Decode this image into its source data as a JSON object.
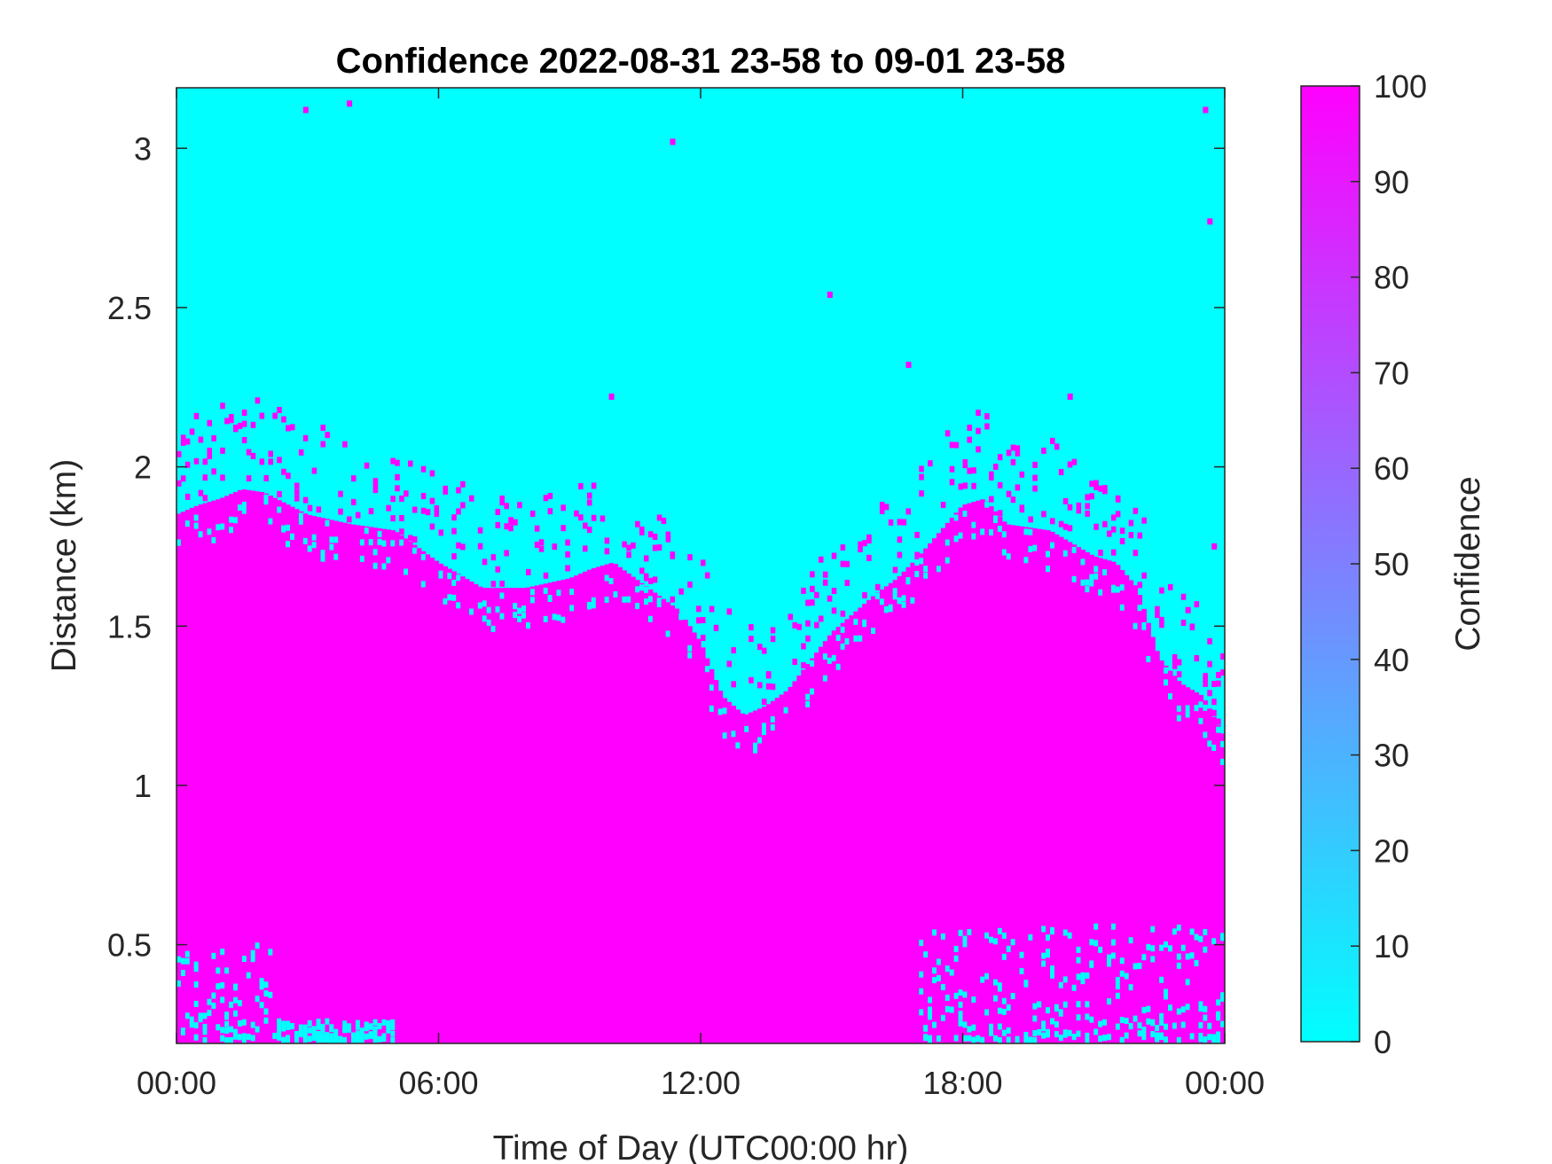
{
  "chart_data": {
    "type": "heatmap",
    "title": "Confidence 2022-08-31 23-58 to 09-01 23-58",
    "xlabel": "Time of Day (UTC00:00 hr)",
    "ylabel": "Distance (km)",
    "x_tick_labels": [
      "00:00",
      "06:00",
      "12:00",
      "18:00",
      "00:00"
    ],
    "x_ticks_hours": [
      0,
      6,
      12,
      18,
      24
    ],
    "xlim_hours": [
      0,
      24
    ],
    "y_ticks": [
      0.5,
      1,
      1.5,
      2,
      2.5,
      3
    ],
    "y_tick_labels": [
      "0.5",
      "1",
      "1.5",
      "2",
      "2.5",
      "3"
    ],
    "ylim": [
      0.19,
      3.19
    ],
    "colorbar": {
      "label": "Confidence",
      "ticks": [
        0,
        10,
        20,
        30,
        40,
        50,
        60,
        70,
        80,
        90,
        100
      ],
      "tick_labels": [
        "0",
        "10",
        "20",
        "30",
        "40",
        "50",
        "60",
        "70",
        "80",
        "90",
        "100"
      ],
      "range": [
        0,
        100
      ],
      "low_color": "#00ffff",
      "high_color": "#ff00ff"
    },
    "grid": false,
    "background_value": 0,
    "high_confidence_value": 100,
    "boundary_top_km": {
      "hour": [
        0,
        0.5,
        1,
        1.5,
        2,
        3,
        4,
        5,
        5.5,
        6,
        7,
        8,
        9,
        9.5,
        10,
        10.5,
        11,
        11.5,
        12,
        12.5,
        13,
        13.5,
        14,
        15,
        16,
        16.5,
        17,
        17.5,
        18,
        18.5,
        19,
        20,
        21,
        21.5,
        22,
        22.5,
        23,
        23.5,
        24
      ],
      "top_km": [
        1.85,
        1.88,
        1.9,
        1.93,
        1.92,
        1.85,
        1.82,
        1.8,
        1.75,
        1.7,
        1.62,
        1.62,
        1.65,
        1.68,
        1.7,
        1.65,
        1.6,
        1.55,
        1.45,
        1.28,
        1.22,
        1.25,
        1.3,
        1.48,
        1.6,
        1.65,
        1.72,
        1.8,
        1.88,
        1.9,
        1.82,
        1.8,
        1.72,
        1.7,
        1.62,
        1.4,
        1.32,
        1.28,
        1.15
      ]
    },
    "low_confidence_patches": [
      {
        "hour_range": [
          0,
          2.2
        ],
        "height_km": [
          0.19,
          0.5
        ]
      },
      {
        "hour_range": [
          2.2,
          5
        ],
        "height_km": [
          0.19,
          0.25
        ]
      },
      {
        "hour_range": [
          17,
          24
        ],
        "height_km": [
          0.19,
          0.55
        ]
      }
    ]
  }
}
